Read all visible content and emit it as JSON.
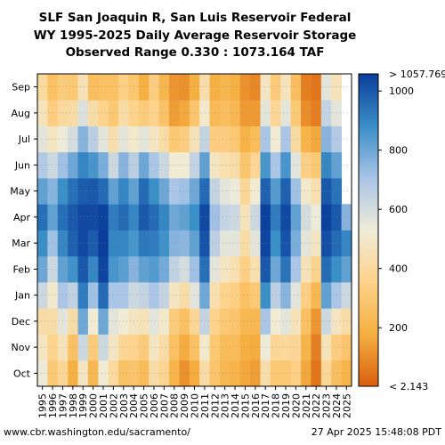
{
  "footer": {
    "source": "www.cbr.washington.edu/sacramento/",
    "timestamp": "27 Apr 2025 15:48:08 PDT"
  },
  "chart_data": {
    "type": "heatmap",
    "title": [
      "SLF San Joaquin R, San Luis Reservoir Federal",
      "WY 1995-2025 Daily Average Reservoir Storage",
      "Observed Range 0.330 : 1073.164 TAF"
    ],
    "x_categories": [
      "1995",
      "1996",
      "1997",
      "1998",
      "1999",
      "2000",
      "2001",
      "2002",
      "2003",
      "2004",
      "2005",
      "2006",
      "2007",
      "2008",
      "2009",
      "2010",
      "2011",
      "2012",
      "2013",
      "2014",
      "2015",
      "2016",
      "2017",
      "2018",
      "2019",
      "2020",
      "2021",
      "2022",
      "2023",
      "2024",
      "2025"
    ],
    "y_categories": [
      "Oct",
      "Nov",
      "Dec",
      "Jan",
      "Feb",
      "Mar",
      "Apr",
      "May",
      "Jun",
      "Jul",
      "Aug",
      "Sep"
    ],
    "colorbar": {
      "top_label": "> 1057.769",
      "bottom_label": "< 2.143",
      "ticks": [
        "200",
        "400",
        "600",
        "800",
        "1000"
      ],
      "tick_values": [
        200,
        400,
        600,
        800,
        1000
      ],
      "range": [
        2.143,
        1057.769
      ],
      "colors": [
        "#d95f0e",
        "#f5b042",
        "#fdd28a",
        "#f0ecd8",
        "#a9c4e6",
        "#3a8ec7",
        "#0a3d9c"
      ]
    },
    "units": "TAF",
    "monthly_storage_by_year": [
      [
        540,
        480,
        420,
        620,
        800,
        880,
        950,
        820,
        680,
        560,
        470,
        400
      ],
      [
        300,
        360,
        420,
        500,
        620,
        720,
        820,
        760,
        620,
        480,
        330,
        260
      ],
      [
        380,
        460,
        560,
        700,
        820,
        900,
        950,
        880,
        720,
        540,
        400,
        320
      ],
      [
        180,
        260,
        420,
        650,
        870,
        980,
        1000,
        950,
        800,
        600,
        420,
        300
      ],
      [
        480,
        620,
        800,
        920,
        1000,
        1030,
        1030,
        990,
        900,
        760,
        580,
        450
      ],
      [
        220,
        320,
        520,
        720,
        900,
        990,
        1030,
        1000,
        860,
        660,
        420,
        250
      ],
      [
        520,
        620,
        800,
        960,
        1040,
        1060,
        1050,
        960,
        780,
        560,
        360,
        260
      ],
      [
        400,
        480,
        560,
        700,
        860,
        900,
        920,
        820,
        620,
        430,
        300,
        260
      ],
      [
        260,
        380,
        520,
        700,
        830,
        900,
        960,
        900,
        760,
        560,
        420,
        340
      ],
      [
        280,
        360,
        480,
        620,
        760,
        860,
        900,
        820,
        660,
        500,
        360,
        290
      ],
      [
        240,
        320,
        460,
        640,
        820,
        930,
        1000,
        960,
        800,
        560,
        320,
        180
      ],
      [
        420,
        480,
        560,
        700,
        840,
        920,
        960,
        880,
        700,
        480,
        360,
        330
      ],
      [
        370,
        420,
        500,
        640,
        790,
        870,
        900,
        800,
        620,
        420,
        270,
        210
      ],
      [
        200,
        260,
        320,
        480,
        650,
        760,
        800,
        700,
        520,
        300,
        140,
        120
      ],
      [
        110,
        170,
        260,
        420,
        600,
        750,
        820,
        720,
        520,
        330,
        160,
        110
      ],
      [
        170,
        260,
        380,
        560,
        720,
        820,
        880,
        800,
        640,
        460,
        280,
        180
      ],
      [
        420,
        500,
        640,
        800,
        950,
        1010,
        1030,
        960,
        820,
        640,
        500,
        430
      ],
      [
        280,
        300,
        360,
        440,
        560,
        660,
        720,
        640,
        480,
        330,
        230,
        180
      ],
      [
        220,
        240,
        300,
        360,
        480,
        560,
        640,
        560,
        440,
        330,
        250,
        210
      ],
      [
        200,
        240,
        280,
        340,
        440,
        560,
        620,
        540,
        420,
        300,
        220,
        180
      ],
      [
        160,
        180,
        220,
        260,
        340,
        420,
        460,
        380,
        280,
        190,
        130,
        110
      ],
      [
        140,
        170,
        220,
        300,
        440,
        560,
        620,
        520,
        380,
        240,
        130,
        90
      ],
      [
        430,
        540,
        700,
        880,
        1000,
        1040,
        1050,
        980,
        860,
        700,
        560,
        480
      ],
      [
        300,
        380,
        520,
        660,
        800,
        880,
        920,
        840,
        700,
        520,
        380,
        310
      ],
      [
        300,
        400,
        560,
        760,
        940,
        1010,
        1030,
        980,
        860,
        700,
        560,
        470
      ],
      [
        340,
        380,
        460,
        560,
        700,
        780,
        820,
        720,
        560,
        400,
        300,
        250
      ],
      [
        160,
        200,
        260,
        340,
        460,
        560,
        600,
        500,
        340,
        200,
        100,
        70
      ],
      [
        50,
        70,
        120,
        220,
        360,
        480,
        540,
        440,
        300,
        160,
        70,
        50
      ],
      [
        380,
        460,
        620,
        820,
        960,
        1020,
        1050,
        1000,
        900,
        760,
        640,
        560
      ],
      [
        250,
        330,
        480,
        700,
        880,
        960,
        1000,
        940,
        820,
        680,
        560,
        460
      ],
      [
        200,
        280,
        420,
        620,
        820,
        900,
        760,
        null,
        null,
        null,
        null,
        null
      ]
    ]
  }
}
